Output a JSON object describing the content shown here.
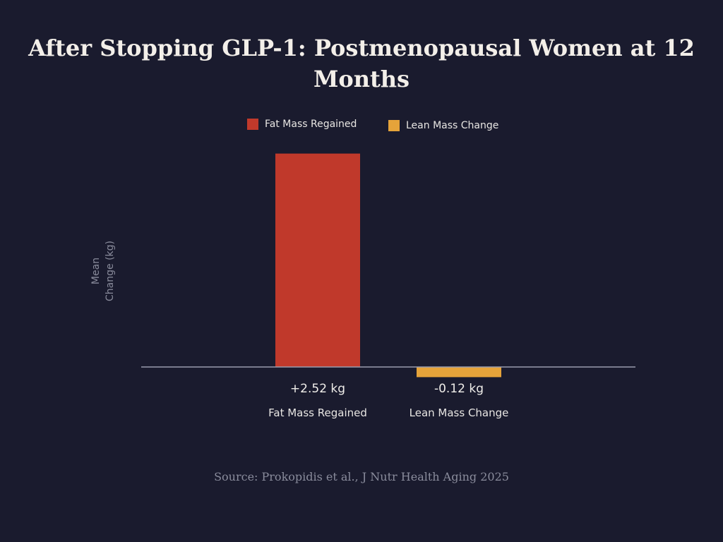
{
  "chart_data": {
    "type": "bar",
    "title": "After Stopping GLP-1: Postmenopausal Women at 12 Months",
    "ylabel_lines": [
      "Mean",
      "Change (kg)"
    ],
    "categories": [
      "Fat Mass Regained",
      "Lean Mass Change"
    ],
    "values": [
      2.52,
      -0.12
    ],
    "data_labels": [
      "+2.52 kg",
      "-0.12 kg"
    ],
    "colors": [
      "#c0392b",
      "#e5a33a"
    ],
    "legend": [
      {
        "label": "Fat Mass Regained",
        "color": "#c0392b"
      },
      {
        "label": "Lean Mass Change",
        "color": "#e5a33a"
      }
    ],
    "legend_position": "top-center",
    "grid": false,
    "ylim": [
      -0.5,
      2.6
    ]
  },
  "source": "Source: Prokopidis et al., J Nutr Health Aging 2025"
}
